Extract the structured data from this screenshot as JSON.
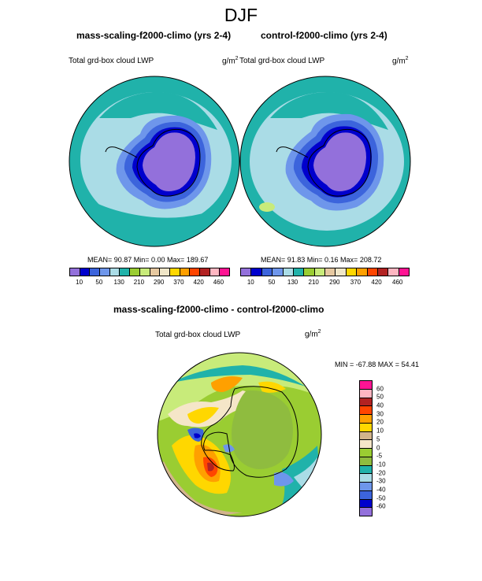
{
  "title": "DJF",
  "panels": [
    {
      "title": "mass-scaling-f2000-climo (yrs 2-4)",
      "field": "Total grd-box cloud LWP",
      "units": "g/m",
      "units_exp": "2",
      "stats": "MEAN=  90.87  Min=   0.00  Max= 189.67"
    },
    {
      "title": "control-f2000-climo (yrs 2-4)",
      "field": "Total grd-box cloud LWP",
      "units": "g/m",
      "units_exp": "2",
      "stats": "MEAN=  91.83  Min=   0.16  Max= 208.72"
    }
  ],
  "abs_colorbar": {
    "colors": [
      "#9370db",
      "#0000cd",
      "#3c64dc",
      "#6e96eb",
      "#aadce6",
      "#20b2aa",
      "#9acd32",
      "#c8eb7a",
      "#e6c8a0",
      "#f0e6c8",
      "#ffd700",
      "#ffa000",
      "#ff4500",
      "#b22222",
      "#ffb6c1",
      "#ff1493"
    ],
    "tick_labels": [
      "10",
      "50",
      "130",
      "210",
      "290",
      "370",
      "420",
      "460"
    ]
  },
  "diff_panel": {
    "title": "mass-scaling-f2000-climo - control-f2000-climo",
    "field": "Total grd-box cloud LWP",
    "units": "g/m",
    "units_exp": "2",
    "stats": "MIN = -67.88  MAX =  54.41"
  },
  "diff_colorbar": {
    "colors": [
      "#ff1493",
      "#ffb6c1",
      "#b22222",
      "#ff4500",
      "#ffa000",
      "#ffd700",
      "#d2b48c",
      "#f5e6c8",
      "#9acd32",
      "#8fbc3f",
      "#20b2aa",
      "#aadce6",
      "#6e96eb",
      "#3c64dc",
      "#0000cd",
      "#9370db"
    ],
    "tick_labels": [
      "60",
      "50",
      "40",
      "30",
      "20",
      "10",
      "5",
      "0",
      "-5",
      "-10",
      "-20",
      "-30",
      "-40",
      "-50",
      "-60"
    ]
  }
}
